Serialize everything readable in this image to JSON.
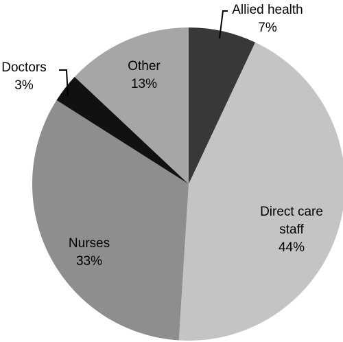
{
  "chart_data": {
    "type": "pie",
    "categories": [
      "Allied health",
      "Direct care staff",
      "Nurses",
      "Doctors",
      "Other"
    ],
    "values": [
      7,
      44,
      33,
      3,
      13
    ],
    "value_labels": [
      "7%",
      "44%",
      "33%",
      "3%",
      "13%"
    ],
    "colors": [
      "#383838",
      "#c4c4c4",
      "#8e8e8e",
      "#111111",
      "#a6a6a6"
    ]
  }
}
